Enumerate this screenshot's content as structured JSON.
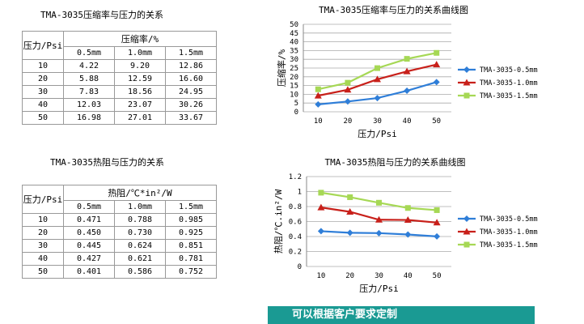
{
  "chart_data": [
    {
      "type": "table",
      "title": "TMA-3035压缩率与压力的关系",
      "row_header": "压力/Psi",
      "value_header": "压缩率/%",
      "columns": [
        "0.5mm",
        "1.0mm",
        "1.5mm"
      ],
      "rows": [
        {
          "pressure": "10",
          "values": [
            "4.22",
            "9.20",
            "12.86"
          ]
        },
        {
          "pressure": "20",
          "values": [
            "5.88",
            "12.59",
            "16.60"
          ]
        },
        {
          "pressure": "30",
          "values": [
            "7.83",
            "18.56",
            "24.95"
          ]
        },
        {
          "pressure": "40",
          "values": [
            "12.03",
            "23.07",
            "30.26"
          ]
        },
        {
          "pressure": "50",
          "values": [
            "16.98",
            "27.01",
            "33.67"
          ]
        }
      ]
    },
    {
      "type": "line",
      "title": "TMA-3035压缩率与压力的关系曲线图",
      "xlabel": "压力/Psi",
      "ylabel": "压缩率/%",
      "x": [
        10,
        20,
        30,
        40,
        50
      ],
      "ylim": [
        0,
        50
      ],
      "yticks": [
        "0",
        "5",
        "10",
        "15",
        "20",
        "25",
        "30",
        "35",
        "40",
        "45",
        "50"
      ],
      "grid": true,
      "legend": "right",
      "series": [
        {
          "name": "TMA-3035-0.5mm",
          "color": "#2f7ed8",
          "marker": "diamond",
          "values": [
            4.22,
            5.88,
            7.83,
            12.03,
            16.98
          ]
        },
        {
          "name": "TMA-3035-1.0mm",
          "color": "#c8201a",
          "marker": "triangle",
          "values": [
            9.2,
            12.59,
            18.56,
            23.07,
            27.01
          ]
        },
        {
          "name": "TMA-3035-1.5mm",
          "color": "#a6d855",
          "marker": "square",
          "values": [
            12.86,
            16.6,
            24.95,
            30.26,
            33.67
          ]
        }
      ]
    },
    {
      "type": "table",
      "title": "TMA-3035热阻与压力的关系",
      "row_header": "压力/Psi",
      "value_header": "热阻/℃*in²/W",
      "columns": [
        "0.5mm",
        "1.0mm",
        "1.5mm"
      ],
      "rows": [
        {
          "pressure": "10",
          "values": [
            "0.471",
            "0.788",
            "0.985"
          ]
        },
        {
          "pressure": "20",
          "values": [
            "0.450",
            "0.730",
            "0.925"
          ]
        },
        {
          "pressure": "30",
          "values": [
            "0.445",
            "0.624",
            "0.851"
          ]
        },
        {
          "pressure": "40",
          "values": [
            "0.427",
            "0.621",
            "0.781"
          ]
        },
        {
          "pressure": "50",
          "values": [
            "0.401",
            "0.586",
            "0.752"
          ]
        }
      ]
    },
    {
      "type": "line",
      "title": "TMA-3035热阻与压力的关系曲线图",
      "xlabel": "压力/Psi",
      "ylabel": "热阻/℃.in²/W",
      "x": [
        10,
        20,
        30,
        40,
        50
      ],
      "ylim": [
        0,
        1.2
      ],
      "yticks": [
        "0",
        "0.2",
        "0.4",
        "0.6",
        "0.8",
        "1",
        "1.2"
      ],
      "grid": true,
      "legend": "right",
      "series": [
        {
          "name": "TMA-3035-0.5mm",
          "color": "#2f7ed8",
          "marker": "diamond",
          "values": [
            0.471,
            0.45,
            0.445,
            0.427,
            0.401
          ]
        },
        {
          "name": "TMA-3035-1.0mm",
          "color": "#c8201a",
          "marker": "triangle",
          "values": [
            0.788,
            0.73,
            0.624,
            0.621,
            0.586
          ]
        },
        {
          "name": "TMA-3035-1.5mm",
          "color": "#a6d855",
          "marker": "square",
          "values": [
            0.985,
            0.925,
            0.851,
            0.781,
            0.752
          ]
        }
      ]
    }
  ],
  "banner": {
    "text": "可以根据客户要求定制",
    "color": "#1a9a93"
  }
}
